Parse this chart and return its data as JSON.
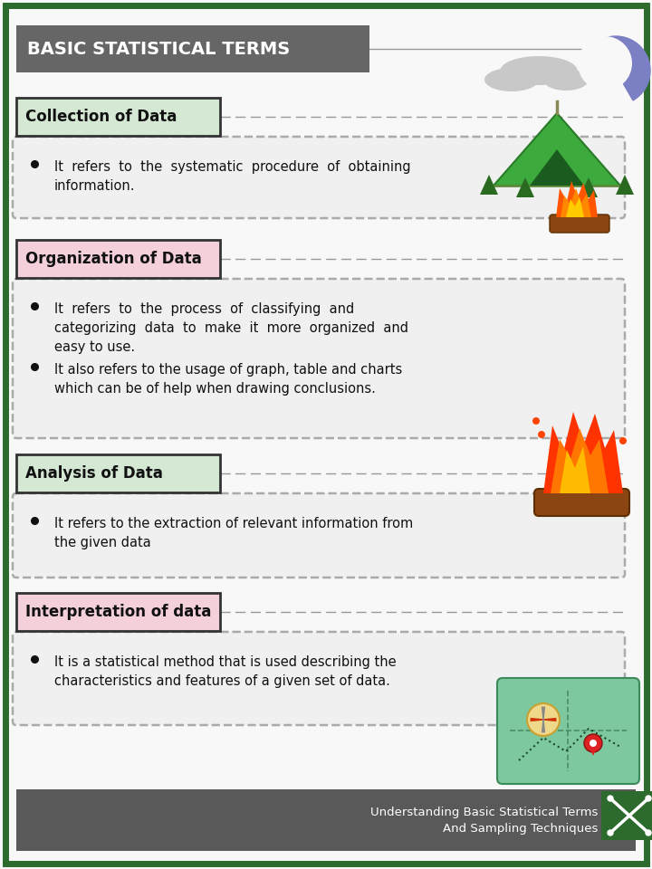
{
  "title": "BASIC STATISTICAL TERMS",
  "title_bg": "#666666",
  "title_color": "#ffffff",
  "border_color": "#2d6a2d",
  "bg_color": "#f8f8f8",
  "sections": [
    {
      "heading": "Collection of Data",
      "heading_bg": "#d5e8d4",
      "bullets": [
        "It  refers  to  the  systematic  procedure  of  obtaining\ninformation."
      ]
    },
    {
      "heading": "Organization of Data",
      "heading_bg": "#f4d0da",
      "bullets": [
        "It  refers  to  the  process  of  classifying  and\ncategorizing  data  to  make  it  more  organized  and\neasy to use.",
        "It also refers to the usage of graph, table and charts\nwhich can be of help when drawing conclusions."
      ]
    },
    {
      "heading": "Analysis of Data",
      "heading_bg": "#d5e8d4",
      "bullets": [
        "It refers to the extraction of relevant information from\nthe given data"
      ]
    },
    {
      "heading": "Interpretation of data",
      "heading_bg": "#f4d0da",
      "bullets": [
        "It is a statistical method that is used describing the\ncharacteristics and features of a given set of data."
      ]
    }
  ],
  "footer_text": "Understanding Basic Statistical Terms\nAnd Sampling Techniques",
  "footer_bg": "#595959",
  "footer_color": "#ffffff"
}
